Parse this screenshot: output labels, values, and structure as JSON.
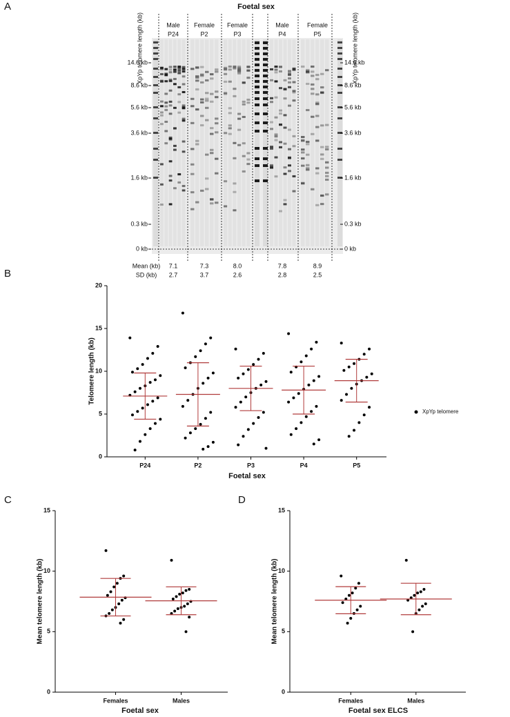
{
  "panel_a": {
    "label": "A",
    "title": "Foetal sex",
    "axis_label": "XpYp telomere length (kb)",
    "markers": [
      "14.6 kb",
      "8.6 kb",
      "5.6 kb",
      "3.6 kb",
      "1.6 kb",
      "0.3 kb",
      "0 kb"
    ],
    "row_labels": [
      "Mean (kb)",
      "SD (kb)"
    ],
    "groups": [
      {
        "sex": "Male",
        "id": "P24",
        "mean": "7.1",
        "sd": "2.7"
      },
      {
        "sex": "Female",
        "id": "P2",
        "mean": "7.3",
        "sd": "3.7"
      },
      {
        "sex": "Female",
        "id": "P3",
        "mean": "8.0",
        "sd": "2.6"
      },
      {
        "sex": "Male",
        "id": "P4",
        "mean": "7.8",
        "sd": "2.8"
      },
      {
        "sex": "Female",
        "id": "P5",
        "mean": "8.9",
        "sd": "2.5"
      }
    ]
  },
  "chart_data": [
    {
      "type": "scatter",
      "panel_label": "B",
      "xlabel": "Foetal sex",
      "ylabel": "Telomere length (kb)",
      "categories": [
        "P24",
        "P2",
        "P3",
        "P4",
        "P5"
      ],
      "series": [
        {
          "name": "XpYp telomere",
          "color": "#000000",
          "values": [
            [
              13.9,
              12.9,
              12.1,
              11.5,
              10.8,
              10.3,
              9.9,
              9.5,
              9.0,
              8.7,
              8.3,
              8.0,
              7.6,
              7.2,
              6.9,
              6.5,
              6.1,
              5.7,
              5.3,
              4.9,
              4.4,
              3.9,
              3.3,
              2.6,
              1.8,
              0.8
            ],
            [
              16.8,
              13.9,
              13.2,
              12.4,
              11.7,
              11.0,
              10.4,
              9.8,
              9.2,
              8.6,
              8.0,
              7.3,
              6.6,
              5.9,
              5.2,
              4.5,
              3.8,
              3.3,
              2.8,
              2.2,
              1.7,
              1.2,
              0.9
            ],
            [
              12.6,
              12.1,
              11.4,
              10.8,
              10.2,
              9.7,
              9.2,
              8.8,
              8.4,
              8.0,
              7.5,
              7.0,
              6.4,
              5.8,
              5.2,
              4.6,
              3.9,
              3.2,
              2.4,
              1.4,
              1.0
            ],
            [
              14.4,
              13.4,
              12.6,
              11.8,
              11.1,
              10.5,
              9.9,
              9.4,
              8.9,
              8.4,
              7.9,
              7.4,
              6.9,
              6.4,
              5.9,
              5.3,
              4.7,
              4.0,
              3.3,
              2.6,
              2.0,
              1.5
            ],
            [
              13.3,
              12.6,
              12.0,
              11.4,
              10.9,
              10.5,
              10.1,
              9.7,
              9.3,
              8.9,
              8.5,
              8.0,
              7.3,
              6.6,
              5.8,
              4.9,
              4.0,
              3.1,
              2.4
            ]
          ]
        }
      ],
      "means": [
        7.1,
        7.3,
        8.0,
        7.8,
        8.9
      ],
      "sd": [
        2.7,
        3.7,
        2.6,
        2.8,
        2.5
      ],
      "error_color": "#b03a3a",
      "ylim": [
        0,
        20
      ],
      "yticks": [
        0,
        5,
        10,
        15,
        20
      ],
      "legend": "right"
    },
    {
      "type": "scatter",
      "panel_label": "C",
      "xlabel": "Foetal sex",
      "ylabel": "Mean telomere length (kb)",
      "categories": [
        "Females",
        "Males"
      ],
      "series": [
        {
          "name": "Mean telomere length",
          "color": "#000000",
          "values": [
            [
              11.7,
              9.6,
              9.4,
              9.0,
              8.7,
              8.3,
              8.0,
              7.8,
              7.6,
              7.3,
              7.0,
              6.8,
              6.5,
              6.3,
              6.0,
              5.7
            ],
            [
              10.9,
              8.5,
              8.4,
              8.2,
              8.1,
              7.9,
              7.7,
              7.5,
              7.3,
              7.1,
              7.0,
              6.9,
              6.7,
              6.5,
              6.2,
              5.0
            ]
          ]
        }
      ],
      "means": [
        7.85,
        7.55
      ],
      "sd": [
        1.55,
        1.15
      ],
      "error_color": "#b03a3a",
      "ylim": [
        0,
        15
      ],
      "yticks": [
        0,
        5,
        10,
        15
      ]
    },
    {
      "type": "scatter",
      "panel_label": "D",
      "xlabel": "Foetal sex ELCS",
      "ylabel": "Mean telomere length (kb)",
      "categories": [
        "Females",
        "Males"
      ],
      "series": [
        {
          "name": "Mean telomere length",
          "color": "#000000",
          "values": [
            [
              9.6,
              9.0,
              8.6,
              8.2,
              8.0,
              7.7,
              7.4,
              7.1,
              6.8,
              6.5,
              6.1,
              5.7
            ],
            [
              10.9,
              8.5,
              8.3,
              8.2,
              8.0,
              7.8,
              7.6,
              7.3,
              7.1,
              6.8,
              6.5,
              5.0
            ]
          ]
        }
      ],
      "means": [
        7.6,
        7.7
      ],
      "sd": [
        1.12,
        1.3
      ],
      "error_color": "#b03a3a",
      "ylim": [
        0,
        15
      ],
      "yticks": [
        0,
        5,
        10,
        15
      ]
    }
  ]
}
